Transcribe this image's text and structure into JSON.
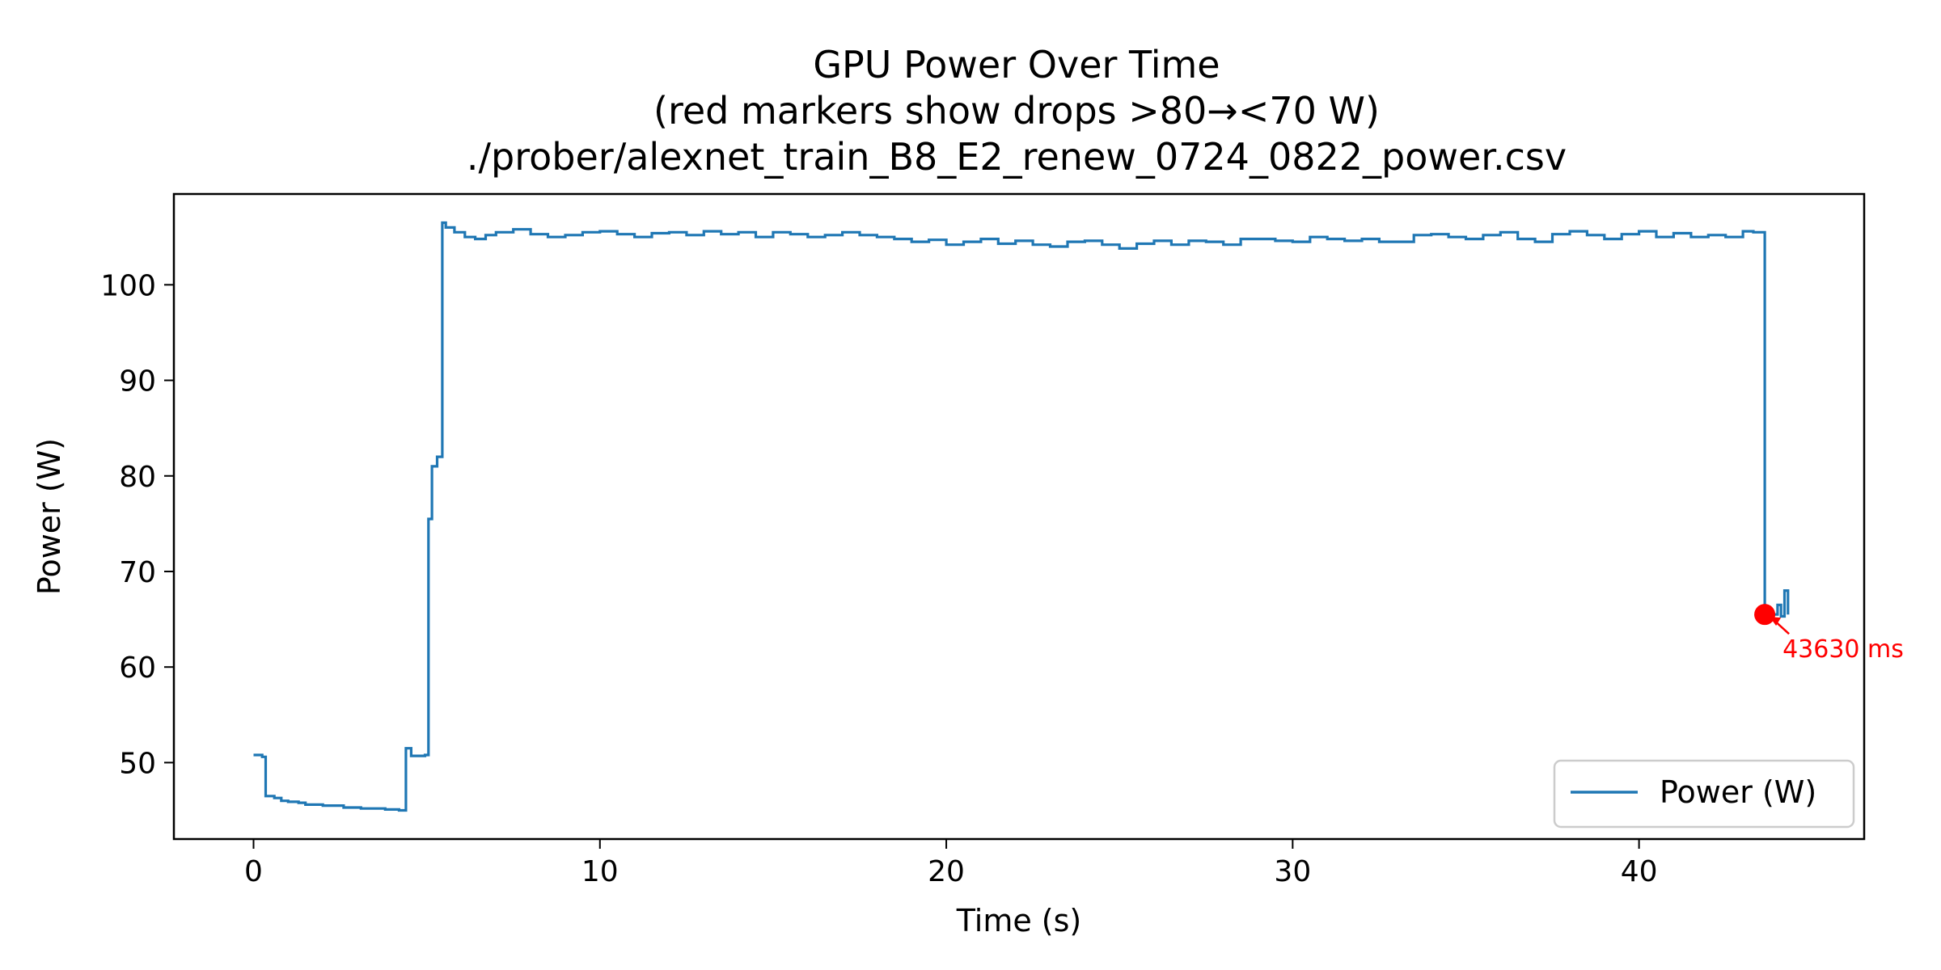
{
  "chart_data": {
    "type": "line",
    "title_lines": [
      "GPU Power Over Time",
      "(red markers show drops >80→<70 W)",
      "./prober/alexnet_train_B8_E2_renew_0724_0822_power.csv"
    ],
    "xlabel": "Time (s)",
    "ylabel": "Power (W)",
    "xlim": [
      -2.3,
      46.5
    ],
    "ylim": [
      42,
      109.5
    ],
    "xticks": [
      0,
      10,
      20,
      30,
      40
    ],
    "yticks": [
      50,
      60,
      70,
      80,
      90,
      100
    ],
    "grid": false,
    "legend": {
      "position": "lower-right",
      "entries": [
        "Power (W)"
      ]
    },
    "colors": {
      "series": "#1f77b4",
      "marker": "#ff0000"
    },
    "series": [
      {
        "name": "Power (W)",
        "step": true,
        "x": [
          0,
          0.25,
          0.35,
          0.6,
          0.8,
          1.0,
          1.3,
          1.5,
          1.7,
          2.0,
          2.3,
          2.6,
          2.9,
          3.1,
          3.4,
          3.6,
          3.8,
          4.0,
          4.2,
          4.4,
          4.55,
          4.7,
          4.95,
          5.05,
          5.15,
          5.3,
          5.45,
          5.55,
          5.8,
          6.1,
          6.4,
          6.7,
          7.0,
          7.5,
          8.0,
          8.5,
          9.0,
          9.5,
          10.0,
          10.5,
          11.0,
          11.5,
          12.0,
          12.5,
          13.0,
          13.5,
          14.0,
          14.5,
          15.0,
          15.5,
          16.0,
          16.5,
          17.0,
          17.5,
          18.0,
          18.5,
          19.0,
          19.5,
          20.0,
          20.5,
          21.0,
          21.5,
          22.0,
          22.5,
          23.0,
          23.5,
          24.0,
          24.5,
          25.0,
          25.5,
          26.0,
          26.5,
          27.0,
          27.5,
          28.0,
          28.5,
          29.0,
          29.5,
          30.0,
          30.5,
          31.0,
          31.5,
          32.0,
          32.5,
          33.0,
          33.5,
          34.0,
          34.5,
          35.0,
          35.5,
          36.0,
          36.5,
          37.0,
          37.5,
          38.0,
          38.5,
          39.0,
          39.5,
          40.0,
          40.5,
          41.0,
          41.5,
          42.0,
          42.5,
          43.0,
          43.3,
          43.6,
          43.63,
          43.9,
          44.0,
          44.1,
          44.2,
          44.3
        ],
        "y": [
          50.8,
          50.6,
          46.5,
          46.3,
          46.0,
          45.9,
          45.8,
          45.6,
          45.6,
          45.5,
          45.5,
          45.3,
          45.3,
          45.2,
          45.2,
          45.2,
          45.1,
          45.1,
          45.0,
          51.5,
          50.7,
          50.7,
          50.8,
          75.5,
          81.0,
          82.0,
          106.5,
          106.0,
          105.5,
          105.0,
          104.8,
          105.2,
          105.5,
          105.8,
          105.3,
          105.0,
          105.2,
          105.5,
          105.6,
          105.3,
          105.0,
          105.4,
          105.5,
          105.2,
          105.6,
          105.3,
          105.5,
          105.0,
          105.5,
          105.3,
          105.0,
          105.2,
          105.5,
          105.2,
          105.0,
          104.8,
          104.5,
          104.7,
          104.2,
          104.5,
          104.8,
          104.3,
          104.6,
          104.2,
          104.0,
          104.5,
          104.6,
          104.2,
          103.8,
          104.3,
          104.6,
          104.2,
          104.6,
          104.5,
          104.2,
          104.8,
          104.8,
          104.6,
          104.5,
          105.0,
          104.8,
          104.6,
          104.8,
          104.5,
          104.5,
          105.2,
          105.3,
          105.0,
          104.8,
          105.2,
          105.5,
          104.8,
          104.5,
          105.3,
          105.6,
          105.2,
          104.8,
          105.3,
          105.6,
          105.0,
          105.4,
          105.0,
          105.2,
          105.0,
          105.6,
          105.5,
          105.5,
          65.5,
          65.5,
          66.5,
          65.3,
          68.0,
          65.5
        ]
      }
    ],
    "markers": [
      {
        "x": 43.63,
        "y": 65.5,
        "label": "43630 ms"
      }
    ]
  }
}
